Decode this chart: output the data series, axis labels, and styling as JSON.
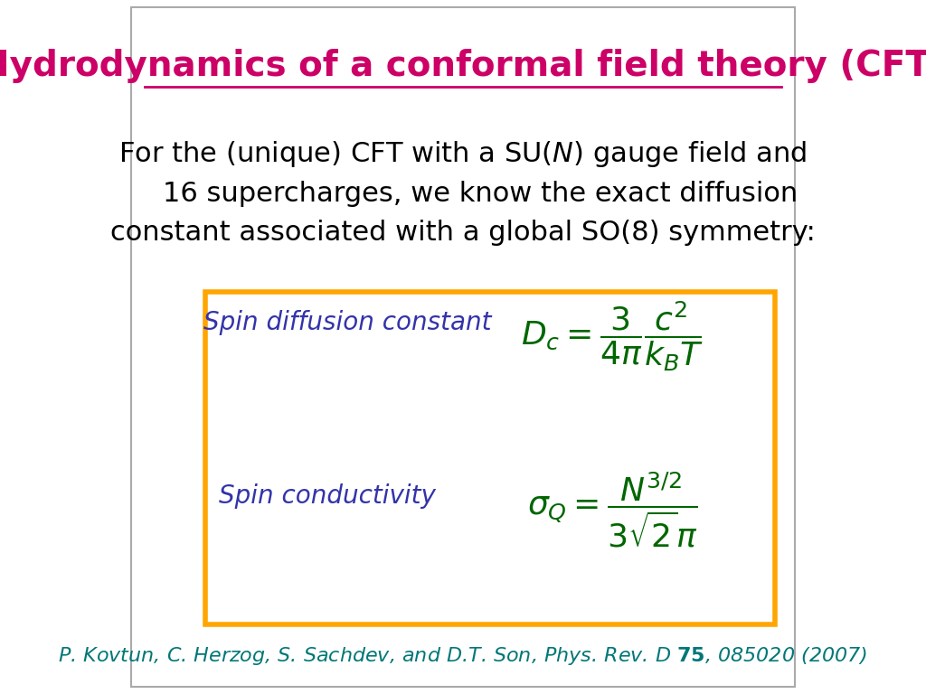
{
  "title": "Hydrodynamics of a conformal field theory (CFT)",
  "title_color": "#CC0066",
  "title_fontsize": 28,
  "bg_color": "#ffffff",
  "border_color": "#cccccc",
  "main_text": "For the (unique) CFT with a SU(\\textit{N}) gauge field and\n    16 supercharges, we know the exact diffusion\nconstant associated with a global SO(8) symmetry:",
  "main_text_color": "#000000",
  "main_text_fontsize": 22,
  "box_color": "#FFA500",
  "box_bg": "#ffffff",
  "label1": "Spin diffusion constant",
  "label2": "Spin conductivity",
  "label_color": "#3333AA",
  "label_fontsize": 20,
  "formula1": "$D_c = \\dfrac{3}{4\\pi} \\dfrac{c^2}{k_B T}$",
  "formula2": "$\\sigma_Q = \\dfrac{N^{3/2}}{3\\sqrt{2}\\pi}$",
  "formula_color": "#006600",
  "formula_fontsize": 26,
  "citation": "P. Kovtun, C. Herzog, S. Sachdev, and D.T. Son, Phys. Rev. D \\textbf{75}, 085020 (2007)",
  "citation_color": "#007777",
  "citation_fontsize": 16
}
